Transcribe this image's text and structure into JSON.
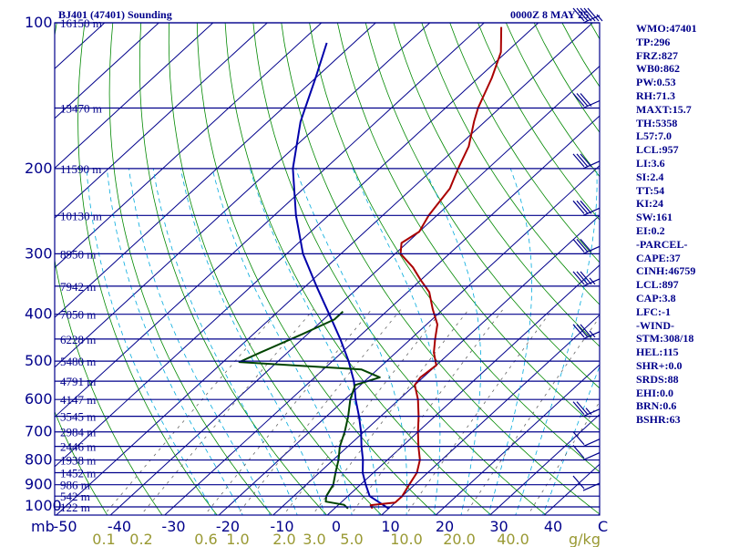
{
  "header": {
    "left": "BJ401 (47401) Sounding",
    "right": "0000Z  8 MAY 25"
  },
  "stats": [
    "WMO:47401",
    "TP:296",
    "FRZ:827",
    "WB0:862",
    "PW:0.53",
    "RH:71.3",
    "MAXT:15.7",
    "TH:5358",
    "L57:7.0",
    "LCL:957",
    "LI:3.6",
    "SI:2.4",
    "TT:54",
    "KI:24",
    "SW:161",
    "EI:0.2",
    "-PARCEL-",
    "CAPE:37",
    "CINH:46759",
    "LCL:897",
    "CAP:3.8",
    "LFC:-1",
    "-WIND-",
    "STM:308/18",
    "HEL:115",
    "SHR+:0.0",
    "SRDS:88",
    "EHI:0.0",
    "BRN:0.6",
    "BSHR:63"
  ],
  "colors": {
    "background": "#ffffff",
    "text": "#00008b",
    "isobar": "#00008b",
    "isotherm": "#00008b",
    "dry_adiabat": "#008800",
    "moist_adiabat": "#00aadd",
    "mixing_ratio": "#666666",
    "temperature": "#aa0000",
    "dewpoint": "#004400",
    "parcel": "#0000aa",
    "mixing_ratio_label": "#999933"
  },
  "chart_data": {
    "type": "skew-t",
    "y_axis_pressure_labels": [
      "100",
      "200",
      "300",
      "400",
      "500",
      "600",
      "700",
      "800",
      "900",
      "1000"
    ],
    "y_axis_units": "mb",
    "x_axis_temperature_labels": [
      "-50",
      "-40",
      "-30",
      "-20",
      "-10",
      "0",
      "10",
      "20",
      "30",
      "40"
    ],
    "x_axis_units": "C",
    "mixing_ratio_labels": [
      "0.1",
      "0.2",
      "0.6",
      "1.0",
      "2.0",
      "3.0",
      "5.0",
      "10.0",
      "20.0",
      "40.0"
    ],
    "mixing_ratio_units": "g/kg",
    "height_levels": [
      {
        "pressure": 100,
        "label": "16150 m"
      },
      {
        "pressure": 150,
        "label": "13470 m"
      },
      {
        "pressure": 200,
        "label": "11590 m"
      },
      {
        "pressure": 250,
        "label": "10130 m"
      },
      {
        "pressure": 300,
        "label": "8950 m"
      },
      {
        "pressure": 350,
        "label": "7942 m"
      },
      {
        "pressure": 400,
        "label": "7050 m"
      },
      {
        "pressure": 450,
        "label": "6228 m"
      },
      {
        "pressure": 500,
        "label": "5480 m"
      },
      {
        "pressure": 550,
        "label": "4791 m"
      },
      {
        "pressure": 600,
        "label": "4147 m"
      },
      {
        "pressure": 650,
        "label": "3545 m"
      },
      {
        "pressure": 700,
        "label": "2984 m"
      },
      {
        "pressure": 750,
        "label": "2446 m"
      },
      {
        "pressure": 800,
        "label": "1938 m"
      },
      {
        "pressure": 850,
        "label": "1452 m"
      },
      {
        "pressure": 900,
        "label": "986 m"
      },
      {
        "pressure": 950,
        "label": "542 m"
      },
      {
        "pressure": 1000,
        "label": "122 m"
      }
    ],
    "temperature_profile": [
      [
        1008,
        7.0
      ],
      [
        992,
        6.0
      ],
      [
        980,
        10.0
      ],
      [
        950,
        10.0
      ],
      [
        900,
        9.0
      ],
      [
        850,
        8.0
      ],
      [
        800,
        6.0
      ],
      [
        750,
        3.0
      ],
      [
        700,
        0.0
      ],
      [
        650,
        -3.0
      ],
      [
        600,
        -6.5
      ],
      [
        560,
        -10.0
      ],
      [
        540,
        -10.5
      ],
      [
        510,
        -10.0
      ],
      [
        480,
        -13.0
      ],
      [
        450,
        -15.5
      ],
      [
        420,
        -18.0
      ],
      [
        390,
        -22.0
      ],
      [
        360,
        -26.0
      ],
      [
        340,
        -30.0
      ],
      [
        320,
        -34.0
      ],
      [
        300,
        -39.0
      ],
      [
        285,
        -41.0
      ],
      [
        270,
        -40.0
      ],
      [
        250,
        -41.5
      ],
      [
        220,
        -43.0
      ],
      [
        200,
        -45.5
      ],
      [
        180,
        -48.0
      ],
      [
        160,
        -52.0
      ],
      [
        150,
        -54.0
      ],
      [
        130,
        -57.5
      ],
      [
        115,
        -61.0
      ],
      [
        102,
        -66.0
      ]
    ],
    "dewpoint_profile": [
      [
        1008,
        2.5
      ],
      [
        990,
        1.0
      ],
      [
        975,
        -3.0
      ],
      [
        950,
        -4.0
      ],
      [
        900,
        -5.0
      ],
      [
        850,
        -7.0
      ],
      [
        800,
        -9.0
      ],
      [
        750,
        -11.5
      ],
      [
        700,
        -13.5
      ],
      [
        650,
        -16.0
      ],
      [
        600,
        -19.0
      ],
      [
        560,
        -21.0
      ],
      [
        540,
        -18.0
      ],
      [
        520,
        -23.0
      ],
      [
        502,
        -47.0
      ],
      [
        480,
        -45.0
      ],
      [
        440,
        -41.0
      ],
      [
        410,
        -38.0
      ],
      [
        395,
        -38.0
      ]
    ],
    "parcel_profile": [
      [
        1008,
        10.0
      ],
      [
        950,
        4.0
      ],
      [
        900,
        1.0
      ],
      [
        850,
        -2.0
      ],
      [
        800,
        -4.5
      ],
      [
        750,
        -7.5
      ],
      [
        700,
        -10.5
      ],
      [
        650,
        -14.0
      ],
      [
        600,
        -18.0
      ],
      [
        550,
        -22.0
      ],
      [
        500,
        -27.0
      ],
      [
        450,
        -33.0
      ],
      [
        400,
        -40.0
      ],
      [
        350,
        -48.0
      ],
      [
        300,
        -57.0
      ],
      [
        250,
        -66.0
      ],
      [
        200,
        -76.0
      ],
      [
        160,
        -84.0
      ],
      [
        130,
        -90.0
      ],
      [
        110,
        -95.0
      ]
    ],
    "wind_barbs": [
      {
        "pressure": 100,
        "direction": 300,
        "speed": 45
      },
      {
        "pressure": 150,
        "direction": 290,
        "speed": 30
      },
      {
        "pressure": 200,
        "direction": 285,
        "speed": 30
      },
      {
        "pressure": 250,
        "direction": 285,
        "speed": 30
      },
      {
        "pressure": 300,
        "direction": 285,
        "speed": 30
      },
      {
        "pressure": 350,
        "direction": 280,
        "speed": 25
      },
      {
        "pressure": 450,
        "direction": 280,
        "speed": 25
      },
      {
        "pressure": 650,
        "direction": 275,
        "speed": 15
      },
      {
        "pressure": 750,
        "direction": 270,
        "speed": 10
      },
      {
        "pressure": 800,
        "direction": 270,
        "speed": 10
      },
      {
        "pressure": 925,
        "direction": 240,
        "speed": 10
      }
    ]
  }
}
